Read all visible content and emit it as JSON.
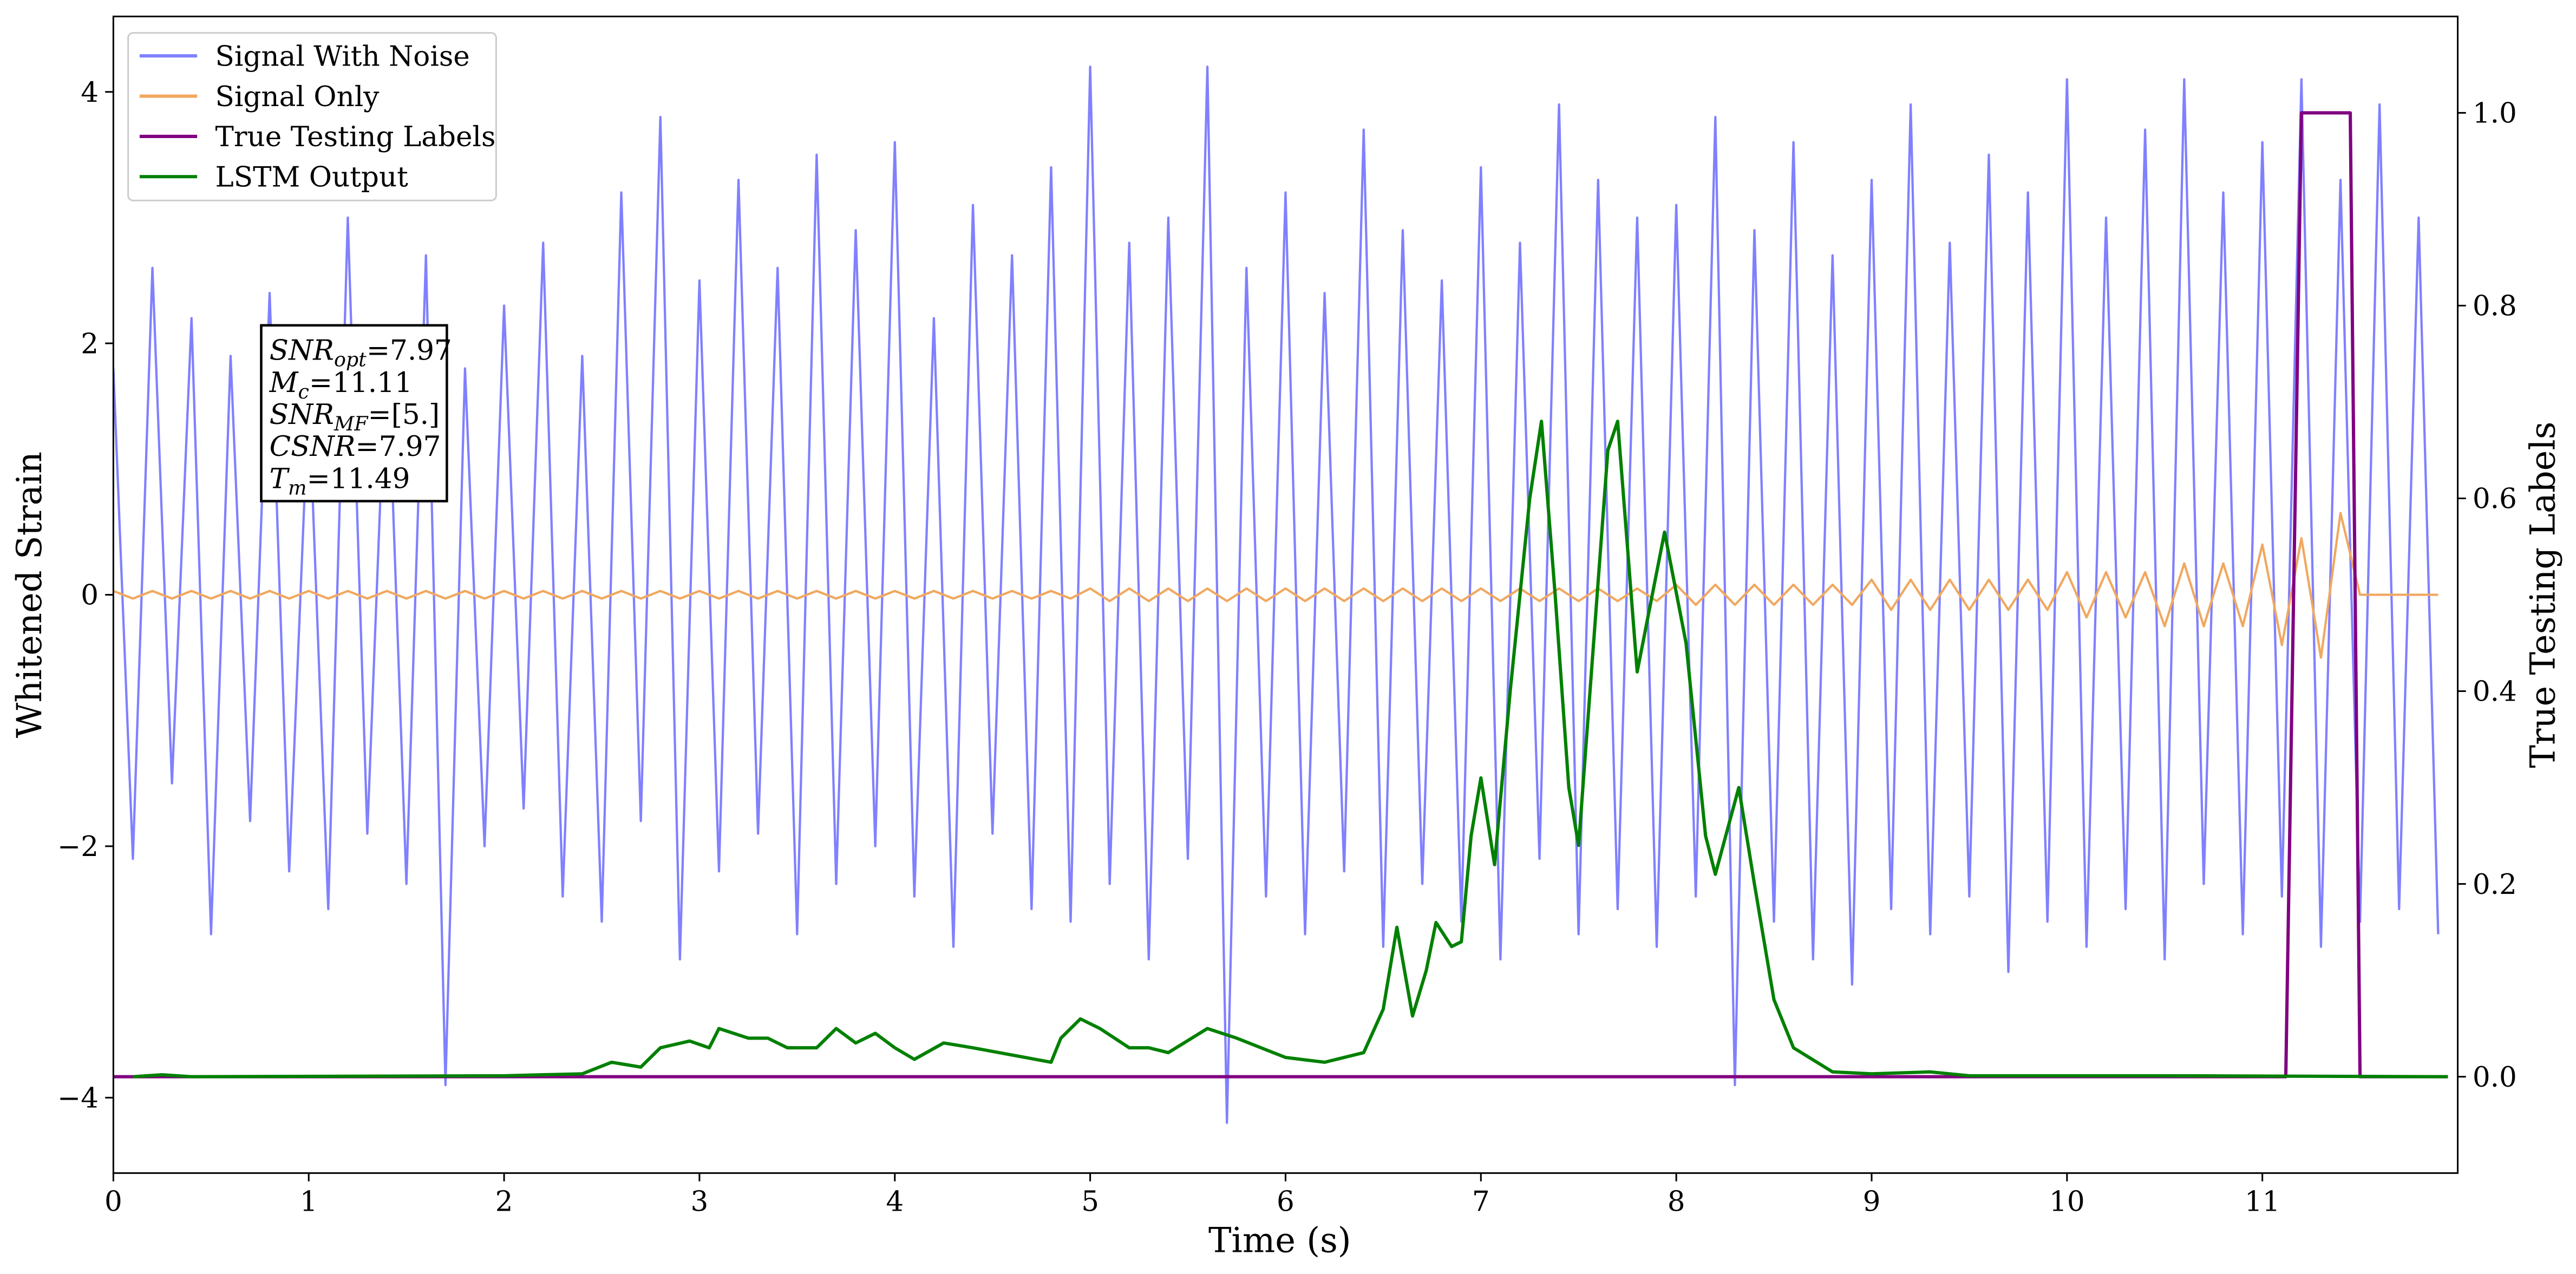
{
  "chart_data": {
    "type": "line",
    "xlabel": "Time (s)",
    "ylabel": "Whitened Strain",
    "y2label": "True Testing Labels",
    "legend": "upper left",
    "xlim": [
      0,
      12
    ],
    "xticks": [
      0,
      1,
      2,
      3,
      4,
      5,
      6,
      7,
      8,
      9,
      10,
      11
    ],
    "ylim": [
      -4.6,
      4.6
    ],
    "yticks": [
      {
        "value": -4,
        "label": "−4"
      },
      {
        "value": -2,
        "label": "−2"
      },
      0,
      2,
      4
    ],
    "y2lim": [
      -0.1,
      1.1
    ],
    "y2ticks": [
      {
        "value": 0,
        "label": "0.0"
      },
      {
        "value": 0.2,
        "label": "0.2"
      },
      {
        "value": 0.4,
        "label": "0.4"
      },
      {
        "value": 0.6,
        "label": "0.6"
      },
      {
        "value": 0.8,
        "label": "0.8"
      },
      {
        "value": 1,
        "label": "1.0"
      }
    ],
    "x": [
      0,
      0.1,
      0.2,
      0.3,
      0.4,
      0.5,
      0.6,
      0.7,
      0.8,
      0.9,
      1,
      1.1,
      1.2,
      1.3,
      1.4,
      1.5,
      1.6,
      1.7,
      1.8,
      1.9,
      2,
      2.1,
      2.2,
      2.3,
      2.4,
      2.5,
      2.6,
      2.7,
      2.8,
      2.9,
      3,
      3.1,
      3.2,
      3.3,
      3.4,
      3.5,
      3.6,
      3.7,
      3.8,
      3.9,
      4,
      4.1,
      4.2,
      4.3,
      4.4,
      4.5,
      4.6,
      4.7,
      4.8,
      4.9,
      5,
      5.1,
      5.2,
      5.3,
      5.4,
      5.5,
      5.6,
      5.7,
      5.8,
      5.9,
      6,
      6.1,
      6.2,
      6.3,
      6.4,
      6.5,
      6.6,
      6.7,
      6.8,
      6.9,
      7,
      7.1,
      7.2,
      7.3,
      7.4,
      7.5,
      7.6,
      7.7,
      7.8,
      7.9,
      8,
      8.1,
      8.2,
      8.3,
      8.4,
      8.5,
      8.6,
      8.7,
      8.8,
      8.9,
      9,
      9.1,
      9.2,
      9.3,
      9.4,
      9.5,
      9.6,
      9.7,
      9.8,
      9.9,
      10,
      10.1,
      10.2,
      10.3,
      10.4,
      10.5,
      10.6,
      10.7,
      10.8,
      10.9,
      11,
      11.1,
      11.2,
      11.3,
      11.4,
      11.5,
      11.6,
      11.7,
      11.8,
      11.9
    ],
    "series": [
      {
        "name": "Signal With Noise",
        "color": "#8080ff",
        "values": [
          1.8,
          -2.1,
          2.6,
          -1.5,
          2.2,
          -2.7,
          1.9,
          -1.8,
          2.4,
          -2.2,
          1.6,
          -2.5,
          3.0,
          -1.9,
          2.1,
          -2.3,
          2.7,
          -3.9,
          1.8,
          -2.0,
          2.3,
          -1.7,
          2.8,
          -2.4,
          1.9,
          -2.6,
          3.2,
          -1.8,
          3.8,
          -2.9,
          2.5,
          -2.2,
          3.3,
          -1.9,
          2.6,
          -2.7,
          3.5,
          -2.3,
          2.9,
          -2.0,
          3.6,
          -2.4,
          2.2,
          -2.8,
          3.1,
          -1.9,
          2.7,
          -2.5,
          3.4,
          -2.6,
          4.2,
          -2.3,
          2.8,
          -2.9,
          3.0,
          -2.1,
          4.2,
          -4.2,
          2.6,
          -2.4,
          3.2,
          -2.7,
          2.4,
          -2.2,
          3.7,
          -2.8,
          2.9,
          -2.3,
          2.5,
          -2.6,
          3.4,
          -2.9,
          2.8,
          -2.1,
          3.9,
          -2.7,
          3.3,
          -2.5,
          3.0,
          -2.8,
          3.1,
          -2.4,
          3.8,
          -3.9,
          2.9,
          -2.6,
          3.6,
          -2.9,
          2.7,
          -3.1,
          3.3,
          -2.5,
          3.9,
          -2.7,
          2.8,
          -2.4,
          3.5,
          -3.0,
          3.2,
          -2.6,
          4.1,
          -2.8,
          3.0,
          -2.5,
          3.7,
          -2.9,
          4.1,
          -2.3,
          3.2,
          -2.7,
          3.6,
          -2.4,
          4.1,
          -2.8,
          3.3,
          -2.6,
          3.9,
          -2.5,
          3.0,
          -2.7
        ]
      },
      {
        "name": "Signal Only",
        "color": "#f0a860",
        "values": [
          0.03,
          -0.03,
          0.03,
          -0.03,
          0.03,
          -0.03,
          0.03,
          -0.03,
          0.03,
          -0.03,
          0.03,
          -0.03,
          0.03,
          -0.03,
          0.03,
          -0.03,
          0.03,
          -0.03,
          0.03,
          -0.03,
          0.03,
          -0.03,
          0.03,
          -0.03,
          0.03,
          -0.03,
          0.03,
          -0.03,
          0.03,
          -0.03,
          0.03,
          -0.03,
          0.03,
          -0.03,
          0.03,
          -0.03,
          0.03,
          -0.03,
          0.03,
          -0.03,
          0.03,
          -0.03,
          0.03,
          -0.03,
          0.03,
          -0.03,
          0.03,
          -0.03,
          0.03,
          -0.03,
          0.05,
          -0.05,
          0.05,
          -0.05,
          0.05,
          -0.05,
          0.05,
          -0.05,
          0.05,
          -0.05,
          0.05,
          -0.05,
          0.05,
          -0.05,
          0.05,
          -0.05,
          0.05,
          -0.05,
          0.05,
          -0.05,
          0.05,
          -0.05,
          0.05,
          -0.05,
          0.05,
          -0.05,
          0.05,
          -0.05,
          0.05,
          -0.05,
          0.08,
          -0.08,
          0.08,
          -0.08,
          0.08,
          -0.08,
          0.08,
          -0.08,
          0.08,
          -0.08,
          0.12,
          -0.12,
          0.12,
          -0.12,
          0.12,
          -0.12,
          0.12,
          -0.12,
          0.12,
          -0.12,
          0.18,
          -0.18,
          0.18,
          -0.18,
          0.18,
          -0.25,
          0.25,
          -0.25,
          0.25,
          -0.25,
          0.4,
          -0.4,
          0.45,
          -0.5,
          0.65,
          0,
          0,
          0,
          0,
          0
        ]
      },
      {
        "name": "True Testing Labels",
        "color": "#800080",
        "axis": "y2",
        "x": [
          0,
          11.12,
          11.2,
          11.45,
          11.5,
          11.95
        ],
        "values": [
          0,
          0,
          1,
          1,
          0,
          0
        ]
      },
      {
        "name": "LSTM Output",
        "color": "#008000",
        "axis": "y2",
        "x": [
          0.1,
          0.25,
          0.4,
          2.0,
          2.4,
          2.55,
          2.7,
          2.8,
          2.95,
          3.05,
          3.1,
          3.25,
          3.35,
          3.45,
          3.6,
          3.7,
          3.8,
          3.9,
          4.0,
          4.1,
          4.25,
          4.4,
          4.8,
          4.85,
          4.95,
          5.05,
          5.2,
          5.3,
          5.4,
          5.6,
          5.75,
          6.0,
          6.2,
          6.4,
          6.5,
          6.57,
          6.65,
          6.72,
          6.77,
          6.85,
          6.9,
          6.95,
          7.0,
          7.07,
          7.15,
          7.25,
          7.31,
          7.38,
          7.45,
          7.5,
          7.65,
          7.7,
          7.8,
          7.94,
          8.05,
          8.15,
          8.2,
          8.32,
          8.4,
          8.5,
          8.6,
          8.8,
          9.0,
          9.3,
          9.5,
          10.5,
          11.95
        ],
        "values": [
          0,
          0.002,
          0,
          0.001,
          0.003,
          0.015,
          0.01,
          0.03,
          0.037,
          0.03,
          0.05,
          0.04,
          0.04,
          0.03,
          0.03,
          0.05,
          0.035,
          0.045,
          0.03,
          0.018,
          0.035,
          0.03,
          0.015,
          0.04,
          0.06,
          0.05,
          0.03,
          0.03,
          0.025,
          0.05,
          0.04,
          0.02,
          0.015,
          0.025,
          0.07,
          0.155,
          0.063,
          0.11,
          0.16,
          0.135,
          0.14,
          0.25,
          0.31,
          0.22,
          0.4,
          0.6,
          0.68,
          0.5,
          0.3,
          0.24,
          0.65,
          0.68,
          0.42,
          0.565,
          0.45,
          0.25,
          0.21,
          0.3,
          0.2,
          0.08,
          0.03,
          0.005,
          0.003,
          0.005,
          0.001,
          0.001,
          0
        ]
      }
    ],
    "annotation": [
      {
        "symbol": "SNR",
        "subscript": "opt",
        "text": "=7.97"
      },
      {
        "symbol": "M",
        "subscript": "c",
        "text": "=11.11"
      },
      {
        "symbol": "SNR",
        "subscript": "MF",
        "text": "=[5.]"
      },
      {
        "symbol": "CSNR",
        "text": "=7.97"
      },
      {
        "symbol": "T",
        "subscript": "m",
        "text": "=11.49"
      }
    ]
  }
}
